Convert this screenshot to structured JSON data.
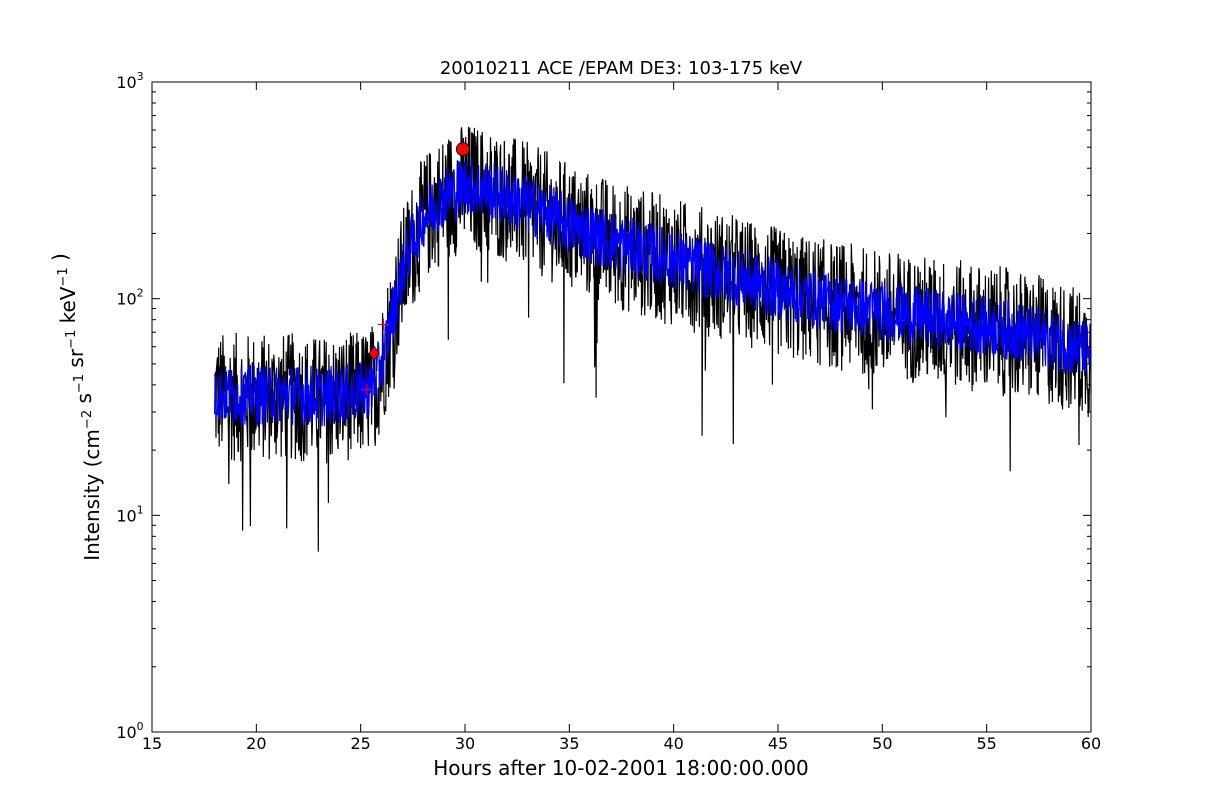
{
  "chart_data": {
    "type": "line",
    "title": "20010211 ACE /EPAM DE3: 103-175 keV",
    "xlabel": "Hours after 10-02-2001 18:00:00.000",
    "ylabel": "Intensity (cm⁻² s⁻¹ sr⁻¹ keV⁻¹)",
    "xlim": [
      15,
      60
    ],
    "ylim": [
      1,
      1000
    ],
    "yscale": "log",
    "grid": false,
    "legend": "none",
    "x_ticks": [
      15,
      20,
      25,
      30,
      35,
      40,
      45,
      50,
      55,
      60
    ],
    "x_tick_labels": [
      "15",
      "20",
      "25",
      "30",
      "35",
      "40",
      "45",
      "50",
      "55",
      "60"
    ],
    "y_ticks": [
      1,
      10,
      100,
      1000
    ],
    "y_tick_labels": [
      {
        "base": "10",
        "exp": "0"
      },
      {
        "base": "10",
        "exp": "1"
      },
      {
        "base": "10",
        "exp": "2"
      },
      {
        "base": "10",
        "exp": "3"
      }
    ],
    "series": [
      {
        "style": "line",
        "color": "#000000",
        "x": [
          18,
          18.5,
          19,
          20,
          21,
          22,
          23,
          24,
          25,
          25.5,
          26,
          26.5,
          27,
          27.5,
          28,
          28.5,
          29,
          29.5,
          30,
          31,
          32,
          33,
          34,
          35,
          36,
          37,
          38,
          40,
          42,
          44,
          46,
          48,
          50,
          52,
          54,
          56,
          58,
          60
        ],
        "y": [
          36,
          35,
          35,
          35,
          35,
          35,
          34,
          35,
          36,
          38,
          48,
          80,
          130,
          180,
          230,
          265,
          290,
          310,
          330,
          315,
          290,
          265,
          240,
          215,
          195,
          180,
          168,
          148,
          130,
          115,
          100,
          92,
          85,
          80,
          75,
          70,
          63,
          55
        ]
      },
      {
        "style": "line",
        "color": "#0000ff",
        "x": [
          18,
          18.5,
          19,
          20,
          21,
          22,
          23,
          24,
          25,
          25.5,
          26,
          26.5,
          27,
          27.5,
          28,
          28.5,
          29,
          29.5,
          30,
          31,
          32,
          33,
          34,
          35,
          36,
          37,
          38,
          40,
          42,
          44,
          46,
          48,
          50,
          52,
          54,
          56,
          58,
          60
        ],
        "y": [
          37,
          36,
          36,
          36,
          36,
          36,
          35,
          36,
          37,
          39,
          50,
          82,
          135,
          185,
          235,
          270,
          295,
          315,
          335,
          320,
          295,
          270,
          245,
          220,
          200,
          185,
          172,
          152,
          133,
          118,
          103,
          95,
          88,
          82,
          77,
          72,
          65,
          57
        ]
      },
      {
        "style": "markers",
        "marker": "circle",
        "color": "#ff0000",
        "x": [
          29.9
        ],
        "y": [
          490
        ]
      },
      {
        "style": "markers",
        "marker": "diamond",
        "color": "#ff0000",
        "x": [
          25.65
        ],
        "y": [
          56
        ]
      },
      {
        "style": "markers",
        "marker": "plus",
        "color": "#ff0000",
        "x": [
          25.3,
          26.1
        ],
        "y": [
          38,
          76
        ]
      }
    ]
  }
}
